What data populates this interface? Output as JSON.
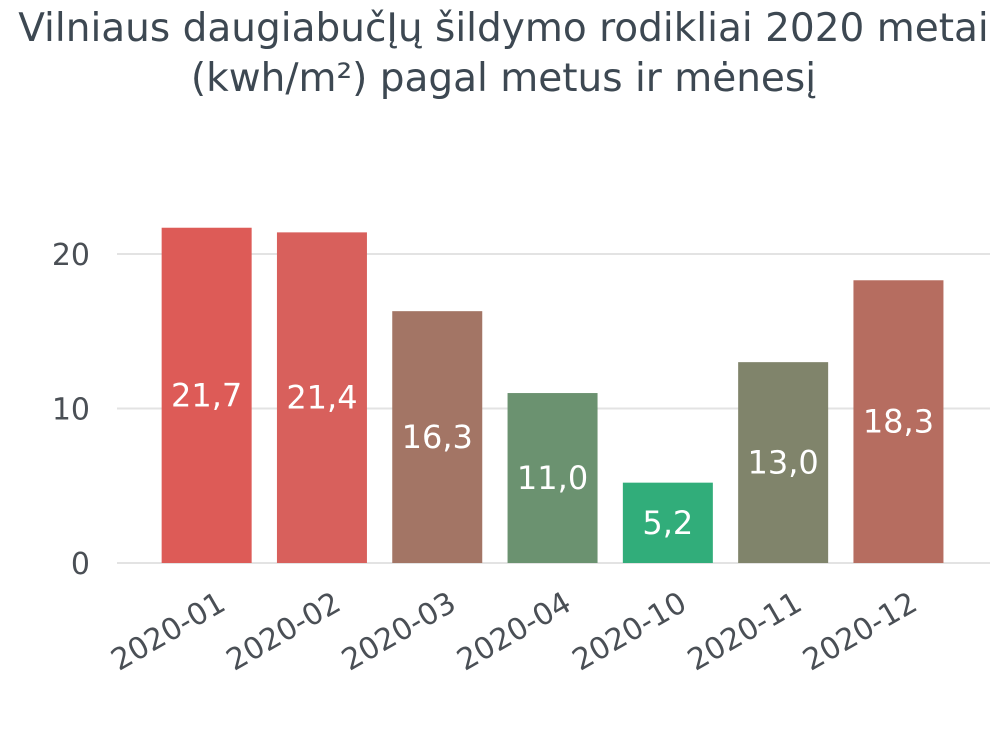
{
  "chart_data": {
    "type": "bar",
    "title": "Vilniaus daugiabučĮų šildymo rodikliai 2020 metai (kwh/m²) pagal metus ir mėnesį",
    "title_lines": [
      "Vilniaus daugiabučĮų šildymo rodikliai 2020 metai",
      "(kwh/m²) pagal metus ir mėnesį"
    ],
    "xlabel": "",
    "ylabel": "",
    "categories": [
      "2020-01",
      "2020-02",
      "2020-03",
      "2020-04",
      "2020-10",
      "2020-11",
      "2020-12"
    ],
    "values": [
      21.7,
      21.4,
      16.3,
      11.0,
      5.2,
      13.0,
      18.3
    ],
    "data_labels": [
      "21,7",
      "21,4",
      "16,3",
      "11,0",
      "5,2",
      "13,0",
      "18,3"
    ],
    "bar_colors": [
      "#dd5b57",
      "#d8605c",
      "#a37565",
      "#6b9270",
      "#31ad7a",
      "#80846b",
      "#b66d60"
    ],
    "yticks": [
      0,
      10,
      20
    ],
    "ylim": [
      0,
      23
    ],
    "grid": true,
    "legend": "none"
  }
}
